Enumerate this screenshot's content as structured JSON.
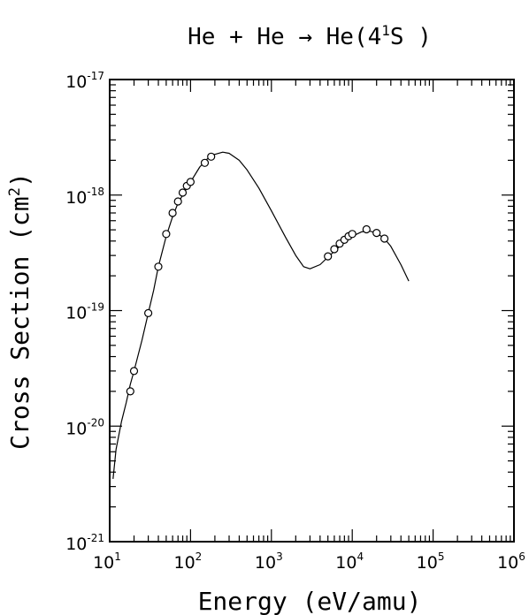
{
  "chart_data": {
    "type": "line",
    "title": {
      "prefix": "He + He → He(4",
      "superscript": "1",
      "suffix": "S )"
    },
    "xlabel": "Energy (eV/amu)",
    "ylabel": {
      "prefix": "Cross Section (cm",
      "superscript": "2",
      "suffix": ")"
    },
    "xscale": "log",
    "yscale": "log",
    "xlim": [
      10,
      1000000
    ],
    "ylim": [
      1e-21,
      1e-17
    ],
    "x_ticks": [
      {
        "value": 10,
        "base": "10",
        "exp": "1"
      },
      {
        "value": 100,
        "base": "10",
        "exp": "2"
      },
      {
        "value": 1000,
        "base": "10",
        "exp": "3"
      },
      {
        "value": 10000,
        "base": "10",
        "exp": "4"
      },
      {
        "value": 100000,
        "base": "10",
        "exp": "5"
      },
      {
        "value": 1000000,
        "base": "10",
        "exp": "6"
      }
    ],
    "y_ticks": [
      {
        "value": 1e-21,
        "base": "10",
        "exp": "-21"
      },
      {
        "value": 1e-20,
        "base": "10",
        "exp": "-20"
      },
      {
        "value": 1e-19,
        "base": "10",
        "exp": "-19"
      },
      {
        "value": 1e-18,
        "base": "10",
        "exp": "-18"
      },
      {
        "value": 1e-17,
        "base": "10",
        "exp": "-17"
      }
    ],
    "grid": false,
    "legend": "none",
    "series": [
      {
        "style": "solid-line",
        "points": [
          [
            11,
            3.5e-21
          ],
          [
            12,
            6.3e-21
          ],
          [
            14,
            1.1e-20
          ],
          [
            16,
            1.6e-20
          ],
          [
            18,
            2.3e-20
          ],
          [
            20,
            3e-20
          ],
          [
            25,
            5.5e-20
          ],
          [
            30,
            9.5e-20
          ],
          [
            35,
            1.5e-19
          ],
          [
            40,
            2.4e-19
          ],
          [
            50,
            4.4e-19
          ],
          [
            60,
            6.5e-19
          ],
          [
            70,
            8.5e-19
          ],
          [
            80,
            1e-18
          ],
          [
            100,
            1.3e-18
          ],
          [
            130,
            1.75e-18
          ],
          [
            160,
            2.05e-18
          ],
          [
            200,
            2.25e-18
          ],
          [
            250,
            2.35e-18
          ],
          [
            300,
            2.3e-18
          ],
          [
            400,
            2e-18
          ],
          [
            500,
            1.65e-18
          ],
          [
            700,
            1.15e-18
          ],
          [
            1000,
            7.3e-19
          ],
          [
            1500,
            4.3e-19
          ],
          [
            2000,
            3e-19
          ],
          [
            2500,
            2.4e-19
          ],
          [
            3000,
            2.3e-19
          ],
          [
            4000,
            2.5e-19
          ],
          [
            5000,
            2.9e-19
          ],
          [
            7000,
            3.6e-19
          ],
          [
            10000,
            4.4e-19
          ],
          [
            13000,
            4.8e-19
          ],
          [
            16000,
            4.9e-19
          ],
          [
            20000,
            4.7e-19
          ],
          [
            25000,
            4.2e-19
          ],
          [
            30000,
            3.6e-19
          ],
          [
            40000,
            2.5e-19
          ],
          [
            50000,
            1.8e-19
          ]
        ]
      },
      {
        "style": "open-circle-markers",
        "points": [
          [
            18,
            2e-20
          ],
          [
            20,
            3e-20
          ],
          [
            30,
            9.5e-20
          ],
          [
            40,
            2.4e-19
          ],
          [
            50,
            4.6e-19
          ],
          [
            60,
            7e-19
          ],
          [
            70,
            8.8e-19
          ],
          [
            80,
            1.05e-18
          ],
          [
            90,
            1.2e-18
          ],
          [
            100,
            1.3e-18
          ],
          [
            150,
            1.9e-18
          ],
          [
            180,
            2.15e-18
          ],
          [
            5000,
            2.95e-19
          ],
          [
            6000,
            3.4e-19
          ],
          [
            7000,
            3.8e-19
          ],
          [
            8000,
            4.1e-19
          ],
          [
            9000,
            4.4e-19
          ],
          [
            10000,
            4.6e-19
          ],
          [
            15000,
            5.05e-19
          ],
          [
            20000,
            4.7e-19
          ],
          [
            25000,
            4.2e-19
          ]
        ]
      }
    ]
  }
}
